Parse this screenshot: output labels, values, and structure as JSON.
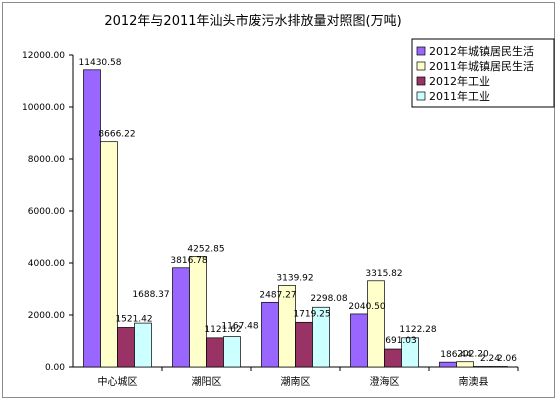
{
  "chart_data": {
    "type": "bar",
    "title": "2012年与2011年汕头市废污水排放量对照图(万吨)",
    "xlabel": "",
    "ylabel": "",
    "ylim": [
      0,
      12000
    ],
    "yticks": [
      "0.00",
      "2000.00",
      "4000.00",
      "6000.00",
      "8000.00",
      "10000.00",
      "12000.00"
    ],
    "ytick_values": [
      0,
      2000,
      4000,
      6000,
      8000,
      10000,
      12000
    ],
    "grid": false,
    "legend_position": "top-right",
    "categories": [
      "中心城区",
      "潮阳区",
      "潮南区",
      "澄海区",
      "南澳县"
    ],
    "series": [
      {
        "name": "2012年城镇居民生活",
        "color": "#9966ff",
        "values": [
          11430.58,
          3816.78,
          2487.27,
          2040.5,
          186.44
        ],
        "labels": [
          "11430.58",
          "3816.78",
          "2487.27",
          "2040.50",
          "186.44"
        ]
      },
      {
        "name": "2011年城镇居民生活",
        "color": "#ffffcc",
        "values": [
          8666.22,
          4252.85,
          3139.92,
          3315.82,
          202.2
        ],
        "labels": [
          "8666.22",
          "4252.85",
          "3139.92",
          "3315.82",
          "202.20"
        ]
      },
      {
        "name": "2012年工业",
        "color": "#993366",
        "values": [
          1521.42,
          1121.62,
          1719.25,
          691.03,
          2.24
        ],
        "labels": [
          "1521.42",
          "1121.62",
          "1719.25",
          "691.03",
          "2.24"
        ]
      },
      {
        "name": "2011年工业",
        "color": "#ccffff",
        "values": [
          1688.37,
          1167.48,
          2298.08,
          1122.28,
          2.06
        ],
        "labels": [
          "1688.37",
          "1167.48",
          "2298.08",
          "1122.28",
          "2.06"
        ]
      }
    ]
  }
}
